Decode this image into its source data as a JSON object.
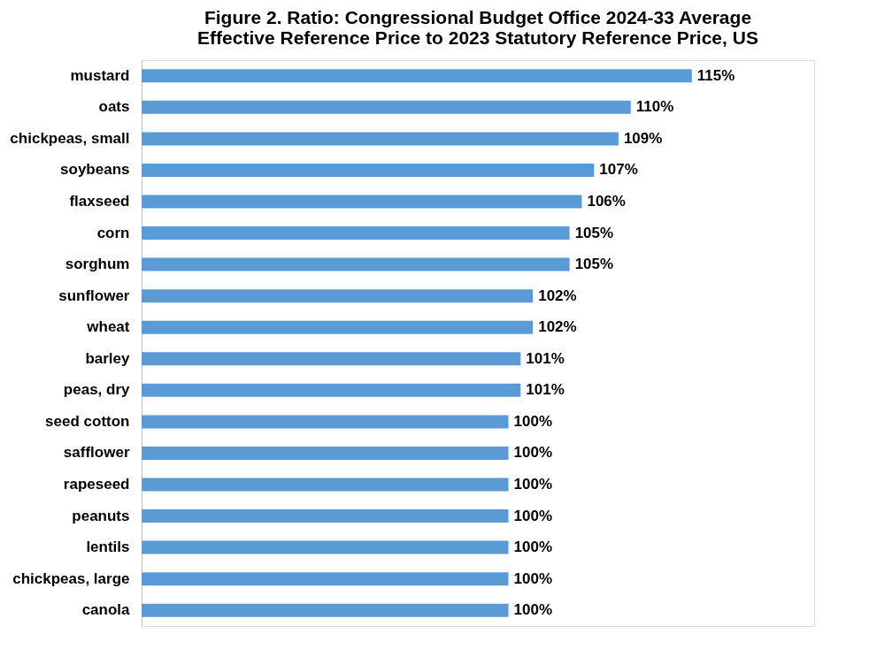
{
  "chart_data": {
    "type": "bar",
    "orientation": "horizontal",
    "title": [
      "Figure 2. Ratio: Congressional Budget Office 2024-33 Average",
      "Effective Reference Price to 2023 Statutory Reference Price, US"
    ],
    "categories": [
      "mustard",
      "oats",
      "chickpeas, small",
      "soybeans",
      "flaxseed",
      "corn",
      "sorghum",
      "sunflower",
      "wheat",
      "barley",
      "peas, dry",
      "seed cotton",
      "safflower",
      "rapeseed",
      "peanuts",
      "lentils",
      "chickpeas, large",
      "canola"
    ],
    "values": [
      115,
      110,
      109,
      107,
      106,
      105,
      105,
      102,
      102,
      101,
      101,
      100,
      100,
      100,
      100,
      100,
      100,
      100
    ],
    "value_labels": [
      "115%",
      "110%",
      "109%",
      "107%",
      "106%",
      "105%",
      "105%",
      "102%",
      "102%",
      "101%",
      "101%",
      "100%",
      "100%",
      "100%",
      "100%",
      "100%",
      "100%",
      "100%"
    ],
    "color": "#5b9bd5",
    "xlim": [
      70,
      125
    ],
    "tick_labels": "y"
  }
}
